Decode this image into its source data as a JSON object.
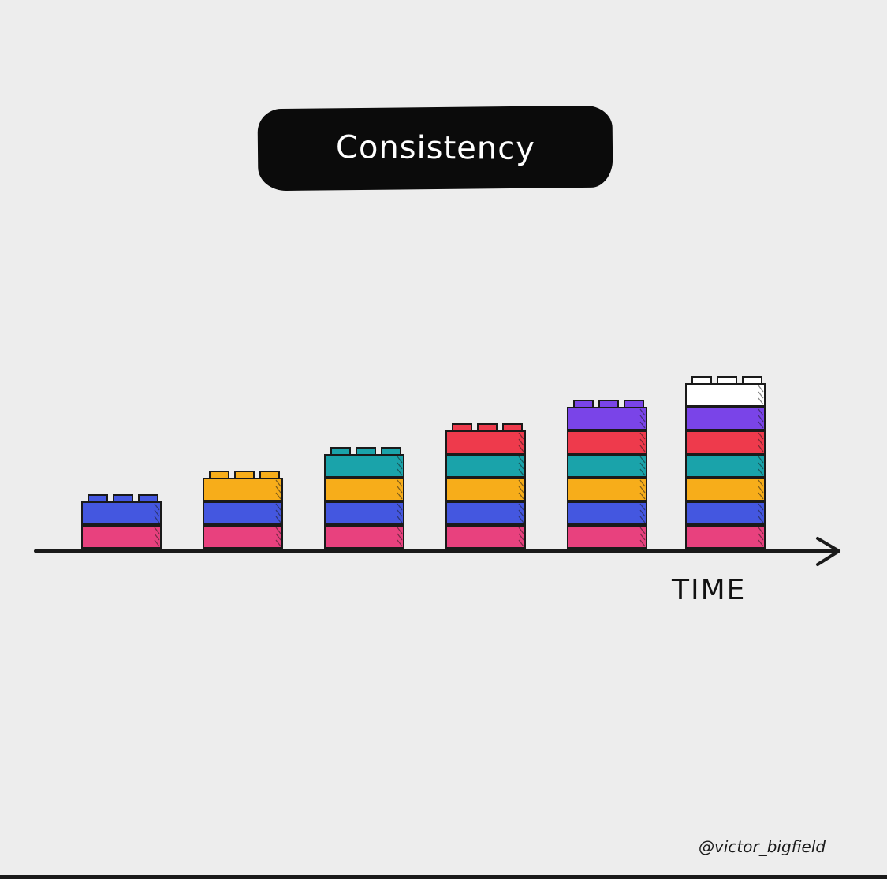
{
  "title": "Consistency",
  "axis_label": "TIME",
  "credit": "@victor_bigfield",
  "colors": {
    "pink": "#e8417e",
    "blue": "#4457e0",
    "orange": "#f7ad1a",
    "teal": "#1aa3aa",
    "red": "#ee3a4c",
    "purple": "#7a44e8",
    "white": "#ffffff",
    "outline": "#1a1a1a"
  },
  "stacks": [
    {
      "bricks": [
        "pink",
        "blue"
      ]
    },
    {
      "bricks": [
        "pink",
        "blue",
        "orange"
      ]
    },
    {
      "bricks": [
        "pink",
        "blue",
        "orange",
        "teal"
      ]
    },
    {
      "bricks": [
        "pink",
        "blue",
        "orange",
        "teal",
        "red"
      ]
    },
    {
      "bricks": [
        "pink",
        "blue",
        "orange",
        "teal",
        "red",
        "purple"
      ]
    },
    {
      "bricks": [
        "pink",
        "blue",
        "orange",
        "teal",
        "red",
        "purple",
        "white"
      ]
    }
  ]
}
